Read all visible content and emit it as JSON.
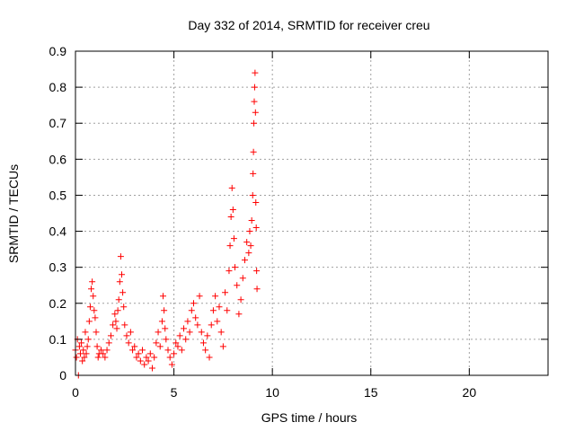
{
  "chart_data": {
    "type": "scatter",
    "title": "Day 332 of 2014, SRMTID for receiver creu",
    "xlabel": "GPS time / hours",
    "ylabel": "SRMTID / TECUs",
    "xlim": [
      0,
      24
    ],
    "ylim": [
      0,
      0.9
    ],
    "x_ticks": [
      0,
      5,
      10,
      15,
      20
    ],
    "y_ticks": [
      0,
      0.1,
      0.2,
      0.3,
      0.4,
      0.5,
      0.6,
      0.7,
      0.8,
      0.9
    ],
    "x_tick_labels": [
      "0",
      "5",
      "10",
      "15",
      "20"
    ],
    "y_tick_labels": [
      "0",
      "0.1",
      "0.2",
      "0.3",
      "0.4",
      "0.5",
      "0.6",
      "0.7",
      "0.8",
      "0.9"
    ],
    "grid": true,
    "marker": "+",
    "color": "#ff0000",
    "series": [
      {
        "name": "SRMTID",
        "points": [
          [
            0.0,
            0.07
          ],
          [
            0.05,
            0.05
          ],
          [
            0.1,
            0.1
          ],
          [
            0.15,
            0.0
          ],
          [
            0.2,
            0.08
          ],
          [
            0.25,
            0.06
          ],
          [
            0.3,
            0.09
          ],
          [
            0.35,
            0.04
          ],
          [
            0.4,
            0.07
          ],
          [
            0.45,
            0.05
          ],
          [
            0.5,
            0.12
          ],
          [
            0.55,
            0.06
          ],
          [
            0.6,
            0.08
          ],
          [
            0.65,
            0.1
          ],
          [
            0.7,
            0.15
          ],
          [
            0.75,
            0.19
          ],
          [
            0.8,
            0.24
          ],
          [
            0.85,
            0.26
          ],
          [
            0.9,
            0.22
          ],
          [
            0.95,
            0.18
          ],
          [
            1.0,
            0.16
          ],
          [
            1.05,
            0.12
          ],
          [
            1.1,
            0.08
          ],
          [
            1.15,
            0.05
          ],
          [
            1.2,
            0.06
          ],
          [
            1.3,
            0.07
          ],
          [
            1.4,
            0.06
          ],
          [
            1.5,
            0.05
          ],
          [
            1.6,
            0.07
          ],
          [
            1.7,
            0.09
          ],
          [
            1.8,
            0.11
          ],
          [
            1.9,
            0.14
          ],
          [
            2.0,
            0.17
          ],
          [
            2.05,
            0.15
          ],
          [
            2.1,
            0.13
          ],
          [
            2.15,
            0.18
          ],
          [
            2.2,
            0.21
          ],
          [
            2.25,
            0.26
          ],
          [
            2.3,
            0.33
          ],
          [
            2.35,
            0.28
          ],
          [
            2.4,
            0.23
          ],
          [
            2.45,
            0.19
          ],
          [
            2.5,
            0.14
          ],
          [
            2.6,
            0.11
          ],
          [
            2.7,
            0.09
          ],
          [
            2.8,
            0.12
          ],
          [
            2.9,
            0.07
          ],
          [
            3.0,
            0.08
          ],
          [
            3.1,
            0.05
          ],
          [
            3.2,
            0.06
          ],
          [
            3.3,
            0.04
          ],
          [
            3.4,
            0.07
          ],
          [
            3.5,
            0.03
          ],
          [
            3.6,
            0.05
          ],
          [
            3.7,
            0.04
          ],
          [
            3.8,
            0.06
          ],
          [
            3.9,
            0.02
          ],
          [
            4.0,
            0.05
          ],
          [
            4.1,
            0.09
          ],
          [
            4.2,
            0.12
          ],
          [
            4.3,
            0.08
          ],
          [
            4.4,
            0.15
          ],
          [
            4.45,
            0.22
          ],
          [
            4.5,
            0.18
          ],
          [
            4.55,
            0.13
          ],
          [
            4.6,
            0.1
          ],
          [
            4.7,
            0.07
          ],
          [
            4.8,
            0.05
          ],
          [
            4.9,
            0.03
          ],
          [
            5.0,
            0.06
          ],
          [
            5.1,
            0.09
          ],
          [
            5.2,
            0.08
          ],
          [
            5.3,
            0.11
          ],
          [
            5.4,
            0.07
          ],
          [
            5.5,
            0.13
          ],
          [
            5.6,
            0.1
          ],
          [
            5.7,
            0.15
          ],
          [
            5.8,
            0.12
          ],
          [
            5.9,
            0.18
          ],
          [
            6.0,
            0.2
          ],
          [
            6.1,
            0.16
          ],
          [
            6.2,
            0.14
          ],
          [
            6.3,
            0.22
          ],
          [
            6.4,
            0.12
          ],
          [
            6.5,
            0.09
          ],
          [
            6.6,
            0.07
          ],
          [
            6.7,
            0.11
          ],
          [
            6.8,
            0.05
          ],
          [
            6.9,
            0.14
          ],
          [
            7.0,
            0.18
          ],
          [
            7.1,
            0.22
          ],
          [
            7.2,
            0.15
          ],
          [
            7.3,
            0.19
          ],
          [
            7.4,
            0.12
          ],
          [
            7.5,
            0.08
          ],
          [
            7.6,
            0.23
          ],
          [
            7.7,
            0.18
          ],
          [
            7.8,
            0.29
          ],
          [
            7.85,
            0.36
          ],
          [
            7.9,
            0.44
          ],
          [
            7.95,
            0.52
          ],
          [
            8.0,
            0.46
          ],
          [
            8.05,
            0.38
          ],
          [
            8.1,
            0.3
          ],
          [
            8.2,
            0.25
          ],
          [
            8.3,
            0.17
          ],
          [
            8.4,
            0.21
          ],
          [
            8.5,
            0.27
          ],
          [
            8.6,
            0.32
          ],
          [
            8.7,
            0.37
          ],
          [
            8.8,
            0.34
          ],
          [
            8.85,
            0.4
          ],
          [
            8.9,
            0.36
          ],
          [
            8.95,
            0.43
          ],
          [
            9.0,
            0.5
          ],
          [
            9.02,
            0.56
          ],
          [
            9.04,
            0.62
          ],
          [
            9.06,
            0.7
          ],
          [
            9.08,
            0.76
          ],
          [
            9.1,
            0.8
          ],
          [
            9.12,
            0.84
          ],
          [
            9.14,
            0.73
          ],
          [
            9.16,
            0.48
          ],
          [
            9.18,
            0.41
          ],
          [
            9.2,
            0.29
          ],
          [
            9.22,
            0.24
          ]
        ]
      }
    ]
  }
}
